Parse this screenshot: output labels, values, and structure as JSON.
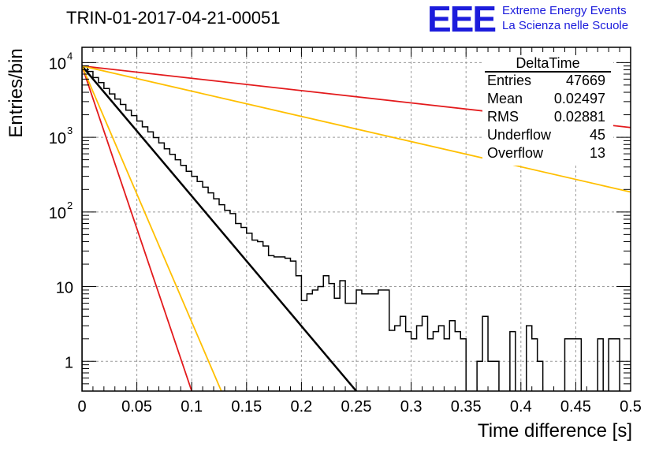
{
  "header": {
    "title": "TRIN-01-2017-04-21-00051",
    "logo_text": "EEE",
    "logo_line1": "Extreme Energy Events",
    "logo_line2": "La Scienza nelle Scuole"
  },
  "stats_box": {
    "title": "DeltaTime",
    "rows": [
      {
        "key": "Entries",
        "value": "47669"
      },
      {
        "key": "Mean",
        "value": "0.02497"
      },
      {
        "key": "RMS",
        "value": "0.02881"
      },
      {
        "key": "Underflow",
        "value": "45"
      },
      {
        "key": "Overflow",
        "value": "13"
      }
    ]
  },
  "chart_data": {
    "type": "line",
    "xlabel": "Time difference [s]",
    "ylabel": "Entries/bin",
    "xlim": [
      0,
      0.5
    ],
    "ylim": [
      0.4,
      16000
    ],
    "yscale": "log",
    "grid": true,
    "x_ticks": [
      "0",
      "0.05",
      "0.1",
      "0.15",
      "0.2",
      "0.25",
      "0.3",
      "0.35",
      "0.4",
      "0.45",
      "0.5"
    ],
    "y_ticks": [
      {
        "value": 1,
        "label": "1"
      },
      {
        "value": 10,
        "label": "10"
      },
      {
        "value": 100,
        "label": "10",
        "exp": "2"
      },
      {
        "value": 1000,
        "label": "10",
        "exp": "3"
      },
      {
        "value": 10000,
        "label": "10",
        "exp": "4"
      }
    ],
    "histogram": {
      "bin_width": 0.005,
      "color": "#000000",
      "counts": [
        9000,
        7600,
        6300,
        5400,
        4500,
        3800,
        3250,
        2750,
        2300,
        1950,
        1650,
        1380,
        1180,
        990,
        840,
        700,
        590,
        500,
        420,
        350,
        300,
        255,
        215,
        180,
        150,
        125,
        105,
        95,
        70,
        62,
        52,
        42,
        40,
        35,
        26,
        25,
        25,
        24,
        22,
        14,
        6.5,
        8,
        9,
        10,
        14,
        11,
        7,
        12,
        6,
        6,
        9,
        8,
        8,
        8,
        9,
        9,
        2.6,
        3,
        4,
        2.5,
        2,
        3,
        4,
        2,
        2.5,
        3,
        2,
        3.5,
        2.5,
        2,
        0,
        0,
        1,
        4,
        1,
        1,
        0,
        0,
        2.5,
        0,
        0,
        3,
        2,
        1,
        0,
        0,
        0,
        0,
        2,
        2,
        2,
        0,
        0,
        0,
        2,
        0,
        2,
        2,
        0,
        0,
        0,
        0,
        1,
        2,
        1,
        1,
        2,
        1,
        2,
        0,
        1,
        2,
        1,
        2,
        1,
        1,
        2,
        2,
        0,
        1,
        0,
        0,
        1,
        0,
        1,
        2,
        1,
        2,
        1,
        1,
        1,
        2,
        1,
        1,
        0,
        1,
        2,
        1
      ]
    },
    "series": [
      {
        "color": "#000000",
        "width": 2.5,
        "type": "exponential",
        "x": [
          0,
          0.25
        ],
        "y": [
          9000,
          0.4
        ]
      },
      {
        "color": "#e31a1c",
        "width": 1.8,
        "type": "exponential",
        "x": [
          0,
          0.1
        ],
        "y": [
          9000,
          0.4
        ]
      },
      {
        "color": "#e31a1c",
        "width": 1.8,
        "type": "exponential",
        "x": [
          0,
          0.5
        ],
        "y": [
          9000,
          1350
        ]
      },
      {
        "color": "#ffbf00",
        "width": 1.8,
        "type": "exponential",
        "x": [
          0,
          0.127
        ],
        "y": [
          9000,
          0.4
        ]
      },
      {
        "color": "#ffbf00",
        "width": 1.8,
        "type": "exponential",
        "x": [
          0,
          0.5
        ],
        "y": [
          9000,
          185
        ]
      }
    ]
  }
}
